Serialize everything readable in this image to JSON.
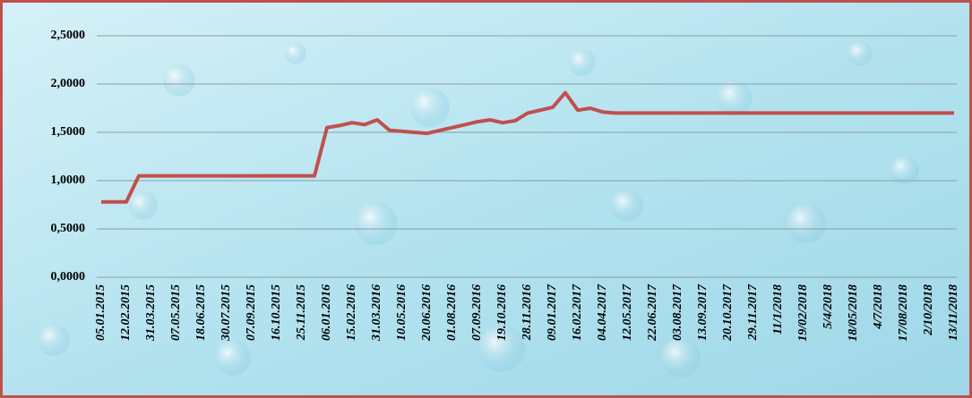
{
  "chart_data": {
    "type": "line",
    "categories": [
      "05.01.2015",
      null,
      "12.02.2015",
      null,
      "31.03.2015",
      null,
      "07.05.2015",
      null,
      "18.06.2015",
      null,
      "30.07.2015",
      null,
      "07.09.2015",
      null,
      "16.10.2015",
      null,
      "25.11.2015",
      null,
      "06.01.2016",
      null,
      "15.02.2016",
      null,
      "31.03.2016",
      null,
      "10.05.2016",
      null,
      "20.06.2016",
      null,
      "01.08.2016",
      null,
      "07.09.2016",
      null,
      "19.10.2016",
      null,
      "28.11.2016",
      null,
      "09.01.2017",
      null,
      "16.02.2017",
      null,
      "04.04.2017",
      null,
      "12.05.2017",
      null,
      "22.06.2017",
      null,
      "03.08.2017",
      null,
      "13.09.2017",
      null,
      "20.10.2017",
      null,
      "29.11.2017",
      null,
      "11/1/2018",
      null,
      "19/02/2018",
      null,
      "5/4/2018",
      null,
      "18/05/2018",
      null,
      "4/7/2018",
      null,
      "17/08/2018",
      null,
      "2/10/2018",
      null,
      "13/11/2018"
    ],
    "values": [
      0.78,
      0.78,
      0.78,
      1.05,
      1.05,
      1.05,
      1.05,
      1.05,
      1.05,
      1.05,
      1.05,
      1.05,
      1.05,
      1.05,
      1.05,
      1.05,
      1.05,
      1.05,
      1.55,
      1.57,
      1.6,
      1.58,
      1.63,
      1.52,
      1.51,
      1.5,
      1.49,
      1.52,
      1.55,
      1.58,
      1.61,
      1.63,
      1.6,
      1.62,
      1.7,
      1.73,
      1.76,
      1.91,
      1.73,
      1.75,
      1.71,
      1.7,
      1.7,
      1.7,
      1.7,
      1.7,
      1.7,
      1.7,
      1.7,
      1.7,
      1.7,
      1.7,
      1.7,
      1.7,
      1.7,
      1.7,
      1.7,
      1.7,
      1.7,
      1.7,
      1.7,
      1.7,
      1.7,
      1.7,
      1.7,
      1.7,
      1.7,
      1.7,
      1.7
    ],
    "color": "#c0504d",
    "ylim": [
      0,
      2.5
    ],
    "yticks": [
      {
        "value": 0,
        "label": "0,0000"
      },
      {
        "value": 0.5,
        "label": "0,5000"
      },
      {
        "value": 1,
        "label": "1,0000"
      },
      {
        "value": 1.5,
        "label": "1,5000"
      },
      {
        "value": 2,
        "label": "2,0000"
      },
      {
        "value": 2.5,
        "label": "2,5000"
      }
    ],
    "grid": true
  }
}
